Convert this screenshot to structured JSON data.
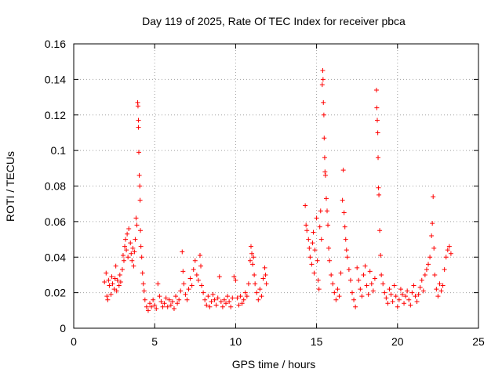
{
  "chart_data": {
    "type": "scatter",
    "title": "Day 119 of 2025, Rate Of TEC Index for receiver pbca",
    "xlabel": "GPS time / hours",
    "ylabel": "ROTI / TECUs",
    "xlim": [
      0,
      25
    ],
    "ylim": [
      0,
      0.16
    ],
    "xticks": [
      0,
      5,
      10,
      15,
      20,
      25
    ],
    "xtick_labels": [
      "0",
      "5",
      "10",
      "15",
      "20",
      "25"
    ],
    "yticks": [
      0,
      0.02,
      0.04,
      0.06,
      0.08,
      0.1,
      0.12,
      0.14,
      0.16
    ],
    "ytick_labels": [
      "0",
      "0.02",
      "0.04",
      "0.06",
      "0.08",
      "0.1",
      "0.12",
      "0.14",
      "0.16"
    ],
    "grid": true,
    "marker": "+",
    "color": "#ff0000",
    "series": [
      {
        "name": "ROTI",
        "points": [
          [
            1.9,
            0.026
          ],
          [
            2.0,
            0.031
          ],
          [
            2.05,
            0.018
          ],
          [
            2.1,
            0.016
          ],
          [
            2.15,
            0.027
          ],
          [
            2.2,
            0.024
          ],
          [
            2.3,
            0.019
          ],
          [
            2.35,
            0.029
          ],
          [
            2.4,
            0.025
          ],
          [
            2.5,
            0.022
          ],
          [
            2.55,
            0.028
          ],
          [
            2.6,
            0.035
          ],
          [
            2.65,
            0.021
          ],
          [
            2.7,
            0.027
          ],
          [
            2.8,
            0.024
          ],
          [
            2.85,
            0.03
          ],
          [
            2.9,
            0.026
          ],
          [
            3.0,
            0.033
          ],
          [
            3.05,
            0.041
          ],
          [
            3.1,
            0.038
          ],
          [
            3.15,
            0.046
          ],
          [
            3.2,
            0.05
          ],
          [
            3.25,
            0.044
          ],
          [
            3.3,
            0.053
          ],
          [
            3.35,
            0.04
          ],
          [
            3.4,
            0.056
          ],
          [
            3.5,
            0.048
          ],
          [
            3.55,
            0.042
          ],
          [
            3.6,
            0.038
          ],
          [
            3.65,
            0.045
          ],
          [
            3.7,
            0.035
          ],
          [
            3.75,
            0.043
          ],
          [
            3.8,
            0.05
          ],
          [
            3.85,
            0.062
          ],
          [
            3.9,
            0.058
          ],
          [
            3.95,
            0.127
          ],
          [
            3.97,
            0.125
          ],
          [
            4.0,
            0.117
          ],
          [
            4.0,
            0.113
          ],
          [
            4.02,
            0.099
          ],
          [
            4.05,
            0.086
          ],
          [
            4.08,
            0.08
          ],
          [
            4.1,
            0.072
          ],
          [
            4.12,
            0.055
          ],
          [
            4.15,
            0.046
          ],
          [
            4.2,
            0.04
          ],
          [
            4.25,
            0.031
          ],
          [
            4.3,
            0.025
          ],
          [
            4.35,
            0.021
          ],
          [
            4.4,
            0.016
          ],
          [
            4.5,
            0.012
          ],
          [
            4.6,
            0.01
          ],
          [
            4.7,
            0.014
          ],
          [
            4.8,
            0.012
          ],
          [
            4.9,
            0.016
          ],
          [
            5.0,
            0.013
          ],
          [
            5.1,
            0.011
          ],
          [
            5.2,
            0.025
          ],
          [
            5.3,
            0.018
          ],
          [
            5.4,
            0.015
          ],
          [
            5.5,
            0.012
          ],
          [
            5.6,
            0.014
          ],
          [
            5.7,
            0.017
          ],
          [
            5.8,
            0.012
          ],
          [
            5.9,
            0.016
          ],
          [
            6.0,
            0.013
          ],
          [
            6.1,
            0.015
          ],
          [
            6.2,
            0.011
          ],
          [
            6.3,
            0.018
          ],
          [
            6.4,
            0.014
          ],
          [
            6.5,
            0.016
          ],
          [
            6.6,
            0.021
          ],
          [
            6.7,
            0.043
          ],
          [
            6.75,
            0.032
          ],
          [
            6.8,
            0.025
          ],
          [
            6.9,
            0.019
          ],
          [
            7.0,
            0.016
          ],
          [
            7.1,
            0.022
          ],
          [
            7.2,
            0.028
          ],
          [
            7.3,
            0.024
          ],
          [
            7.4,
            0.033
          ],
          [
            7.5,
            0.038
          ],
          [
            7.6,
            0.03
          ],
          [
            7.7,
            0.027
          ],
          [
            7.8,
            0.041
          ],
          [
            7.85,
            0.035
          ],
          [
            7.9,
            0.024
          ],
          [
            8.0,
            0.02
          ],
          [
            8.1,
            0.016
          ],
          [
            8.2,
            0.013
          ],
          [
            8.3,
            0.018
          ],
          [
            8.4,
            0.012
          ],
          [
            8.5,
            0.015
          ],
          [
            8.6,
            0.019
          ],
          [
            8.7,
            0.016
          ],
          [
            8.8,
            0.013
          ],
          [
            8.9,
            0.017
          ],
          [
            9.0,
            0.029
          ],
          [
            9.1,
            0.015
          ],
          [
            9.2,
            0.012
          ],
          [
            9.3,
            0.016
          ],
          [
            9.4,
            0.014
          ],
          [
            9.5,
            0.018
          ],
          [
            9.6,
            0.015
          ],
          [
            9.7,
            0.012
          ],
          [
            9.8,
            0.017
          ],
          [
            9.9,
            0.029
          ],
          [
            10.0,
            0.027
          ],
          [
            10.1,
            0.017
          ],
          [
            10.2,
            0.013
          ],
          [
            10.3,
            0.018
          ],
          [
            10.4,
            0.014
          ],
          [
            10.5,
            0.016
          ],
          [
            10.6,
            0.02
          ],
          [
            10.7,
            0.018
          ],
          [
            10.8,
            0.025
          ],
          [
            10.9,
            0.038
          ],
          [
            10.95,
            0.046
          ],
          [
            11.0,
            0.042
          ],
          [
            11.05,
            0.036
          ],
          [
            11.1,
            0.04
          ],
          [
            11.15,
            0.03
          ],
          [
            11.2,
            0.025
          ],
          [
            11.3,
            0.02
          ],
          [
            11.4,
            0.016
          ],
          [
            11.5,
            0.022
          ],
          [
            11.6,
            0.018
          ],
          [
            11.7,
            0.028
          ],
          [
            11.8,
            0.034
          ],
          [
            11.85,
            0.03
          ],
          [
            11.9,
            0.025
          ],
          [
            14.3,
            0.069
          ],
          [
            14.35,
            0.058
          ],
          [
            14.4,
            0.055
          ],
          [
            14.5,
            0.05
          ],
          [
            14.55,
            0.045
          ],
          [
            14.6,
            0.04
          ],
          [
            14.7,
            0.036
          ],
          [
            14.75,
            0.048
          ],
          [
            14.8,
            0.054
          ],
          [
            14.85,
            0.031
          ],
          [
            14.9,
            0.044
          ],
          [
            15.0,
            0.062
          ],
          [
            15.05,
            0.038
          ],
          [
            15.1,
            0.027
          ],
          [
            15.15,
            0.022
          ],
          [
            15.2,
            0.057
          ],
          [
            15.25,
            0.066
          ],
          [
            15.3,
            0.05
          ],
          [
            15.35,
            0.137
          ],
          [
            15.38,
            0.145
          ],
          [
            15.4,
            0.14
          ],
          [
            15.42,
            0.127
          ],
          [
            15.45,
            0.12
          ],
          [
            15.47,
            0.107
          ],
          [
            15.5,
            0.096
          ],
          [
            15.52,
            0.088
          ],
          [
            15.55,
            0.086
          ],
          [
            15.6,
            0.073
          ],
          [
            15.65,
            0.066
          ],
          [
            15.7,
            0.058
          ],
          [
            15.75,
            0.045
          ],
          [
            15.8,
            0.038
          ],
          [
            15.9,
            0.03
          ],
          [
            16.0,
            0.025
          ],
          [
            16.1,
            0.02
          ],
          [
            16.2,
            0.016
          ],
          [
            16.3,
            0.022
          ],
          [
            16.4,
            0.018
          ],
          [
            16.5,
            0.031
          ],
          [
            16.6,
            0.072
          ],
          [
            16.65,
            0.089
          ],
          [
            16.7,
            0.065
          ],
          [
            16.75,
            0.057
          ],
          [
            16.8,
            0.05
          ],
          [
            16.85,
            0.044
          ],
          [
            16.9,
            0.04
          ],
          [
            17.0,
            0.033
          ],
          [
            17.1,
            0.027
          ],
          [
            17.2,
            0.02
          ],
          [
            17.3,
            0.016
          ],
          [
            17.4,
            0.012
          ],
          [
            17.5,
            0.034
          ],
          [
            17.6,
            0.027
          ],
          [
            17.7,
            0.022
          ],
          [
            17.8,
            0.018
          ],
          [
            17.9,
            0.03
          ],
          [
            18.0,
            0.035
          ],
          [
            18.1,
            0.024
          ],
          [
            18.2,
            0.019
          ],
          [
            18.3,
            0.032
          ],
          [
            18.4,
            0.025
          ],
          [
            18.5,
            0.021
          ],
          [
            18.6,
            0.028
          ],
          [
            18.7,
            0.134
          ],
          [
            18.72,
            0.124
          ],
          [
            18.75,
            0.117
          ],
          [
            18.78,
            0.11
          ],
          [
            18.8,
            0.096
          ],
          [
            18.82,
            0.079
          ],
          [
            18.85,
            0.075
          ],
          [
            18.9,
            0.055
          ],
          [
            18.95,
            0.041
          ],
          [
            19.0,
            0.03
          ],
          [
            19.1,
            0.025
          ],
          [
            19.2,
            0.02
          ],
          [
            19.3,
            0.017
          ],
          [
            19.4,
            0.014
          ],
          [
            19.5,
            0.022
          ],
          [
            19.6,
            0.019
          ],
          [
            19.7,
            0.015
          ],
          [
            19.8,
            0.024
          ],
          [
            19.9,
            0.018
          ],
          [
            20.0,
            0.012
          ],
          [
            20.1,
            0.016
          ],
          [
            20.2,
            0.022
          ],
          [
            20.3,
            0.019
          ],
          [
            20.4,
            0.014
          ],
          [
            20.5,
            0.018
          ],
          [
            20.6,
            0.021
          ],
          [
            20.7,
            0.016
          ],
          [
            20.8,
            0.013
          ],
          [
            20.9,
            0.02
          ],
          [
            21.0,
            0.024
          ],
          [
            21.1,
            0.018
          ],
          [
            21.2,
            0.015
          ],
          [
            21.3,
            0.019
          ],
          [
            21.4,
            0.023
          ],
          [
            21.5,
            0.027
          ],
          [
            21.6,
            0.021
          ],
          [
            21.7,
            0.03
          ],
          [
            21.8,
            0.033
          ],
          [
            21.9,
            0.036
          ],
          [
            22.0,
            0.04
          ],
          [
            22.1,
            0.052
          ],
          [
            22.15,
            0.059
          ],
          [
            22.2,
            0.074
          ],
          [
            22.25,
            0.045
          ],
          [
            22.3,
            0.03
          ],
          [
            22.4,
            0.022
          ],
          [
            22.5,
            0.018
          ],
          [
            22.6,
            0.025
          ],
          [
            22.7,
            0.021
          ],
          [
            22.8,
            0.024
          ],
          [
            22.9,
            0.033
          ],
          [
            23.0,
            0.04
          ],
          [
            23.1,
            0.044
          ],
          [
            23.2,
            0.046
          ],
          [
            23.3,
            0.042
          ]
        ]
      }
    ]
  }
}
